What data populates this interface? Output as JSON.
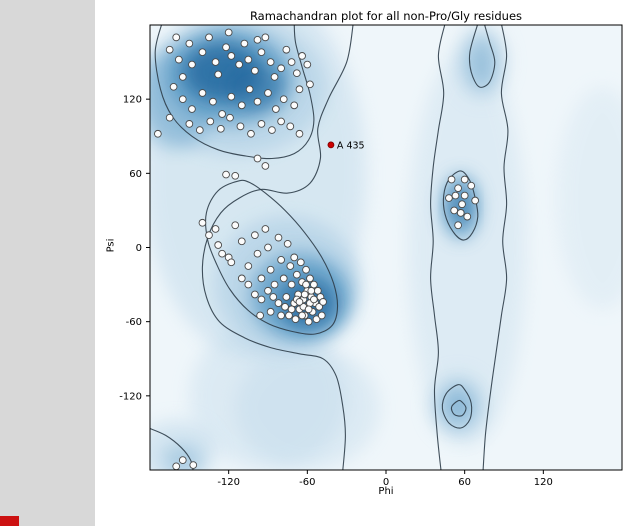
{
  "page": {
    "margin_color": "#d8d8d8",
    "figure_bg": "#ffffff",
    "artifact_color": "#cc1111"
  },
  "chart_data": {
    "type": "scatter",
    "title": "Ramachandran plot for all non-Pro/Gly residues",
    "xlabel": "Phi",
    "ylabel": "Psi",
    "xlim": [
      -180,
      180
    ],
    "ylim": [
      -180,
      180
    ],
    "xticks": [
      -120,
      -60,
      0,
      60,
      120
    ],
    "yticks": [
      -120,
      -60,
      0,
      60,
      120
    ],
    "grid": false,
    "legend": null,
    "colors": {
      "plot_bg": "#eff6fa",
      "light": "#b9d5e8",
      "mid": "#5f9dc7",
      "dark": "#1e639b",
      "contour": "#2e3d49",
      "point_fill": "#fcfcfc",
      "point_stroke": "#4a4a4a",
      "highlight": "#cc0000",
      "text": "#000000"
    },
    "points": [
      [
        -165,
        160
      ],
      [
        -158,
        152
      ],
      [
        -150,
        165
      ],
      [
        -148,
        148
      ],
      [
        -155,
        138
      ],
      [
        -162,
        130
      ],
      [
        -140,
        158
      ],
      [
        -135,
        170
      ],
      [
        -130,
        150
      ],
      [
        -128,
        140
      ],
      [
        -122,
        162
      ],
      [
        -118,
        155
      ],
      [
        -112,
        148
      ],
      [
        -108,
        165
      ],
      [
        -105,
        152
      ],
      [
        -100,
        143
      ],
      [
        -95,
        158
      ],
      [
        -92,
        170
      ],
      [
        -88,
        150
      ],
      [
        -85,
        138
      ],
      [
        -80,
        145
      ],
      [
        -76,
        160
      ],
      [
        -72,
        150
      ],
      [
        -68,
        141
      ],
      [
        -64,
        155
      ],
      [
        -155,
        120
      ],
      [
        -148,
        112
      ],
      [
        -140,
        125
      ],
      [
        -132,
        118
      ],
      [
        -125,
        108
      ],
      [
        -118,
        122
      ],
      [
        -110,
        115
      ],
      [
        -104,
        128
      ],
      [
        -98,
        118
      ],
      [
        -90,
        125
      ],
      [
        -84,
        112
      ],
      [
        -78,
        120
      ],
      [
        -70,
        115
      ],
      [
        -66,
        128
      ],
      [
        -150,
        100
      ],
      [
        -142,
        95
      ],
      [
        -134,
        102
      ],
      [
        -126,
        96
      ],
      [
        -119,
        105
      ],
      [
        -111,
        98
      ],
      [
        -103,
        92
      ],
      [
        -95,
        100
      ],
      [
        -87,
        95
      ],
      [
        -80,
        102
      ],
      [
        -73,
        98
      ],
      [
        -66,
        92
      ],
      [
        -160,
        170
      ],
      [
        -120,
        174
      ],
      [
        -98,
        168
      ],
      [
        -60,
        148
      ],
      [
        -58,
        132
      ],
      [
        -174,
        92
      ],
      [
        -165,
        105
      ],
      [
        -115,
        58
      ],
      [
        -98,
        72
      ],
      [
        -92,
        66
      ],
      [
        -122,
        59
      ],
      [
        -135,
        10
      ],
      [
        -128,
        2
      ],
      [
        -120,
        -8
      ],
      [
        -115,
        18
      ],
      [
        -110,
        5
      ],
      [
        -105,
        -15
      ],
      [
        -100,
        10
      ],
      [
        -98,
        -5
      ],
      [
        -95,
        -25
      ],
      [
        -92,
        15
      ],
      [
        -90,
        0
      ],
      [
        -88,
        -18
      ],
      [
        -85,
        -30
      ],
      [
        -82,
        8
      ],
      [
        -80,
        -10
      ],
      [
        -78,
        -25
      ],
      [
        -76,
        -40
      ],
      [
        -75,
        3
      ],
      [
        -73,
        -15
      ],
      [
        -72,
        -30
      ],
      [
        -70,
        -45
      ],
      [
        -70,
        -8
      ],
      [
        -68,
        -22
      ],
      [
        -67,
        -38
      ],
      [
        -66,
        -50
      ],
      [
        -65,
        -12
      ],
      [
        -64,
        -28
      ],
      [
        -63,
        -42
      ],
      [
        -62,
        -55
      ],
      [
        -61,
        -18
      ],
      [
        -60,
        -35
      ],
      [
        -60,
        -48
      ],
      [
        -59,
        -60
      ],
      [
        -58,
        -25
      ],
      [
        -57,
        -40
      ],
      [
        -56,
        -52
      ],
      [
        -55,
        -30
      ],
      [
        -54,
        -45
      ],
      [
        -53,
        -58
      ],
      [
        -52,
        -35
      ],
      [
        -51,
        -48
      ],
      [
        -50,
        -40
      ],
      [
        -49,
        -55
      ],
      [
        -48,
        -44
      ],
      [
        -58,
        -45
      ],
      [
        -63,
        -48
      ],
      [
        -68,
        -42
      ],
      [
        -72,
        -50
      ],
      [
        -77,
        -48
      ],
      [
        -82,
        -45
      ],
      [
        -86,
        -40
      ],
      [
        -90,
        -35
      ],
      [
        -95,
        -42
      ],
      [
        -100,
        -38
      ],
      [
        -105,
        -30
      ],
      [
        -110,
        -25
      ],
      [
        -118,
        -12
      ],
      [
        -125,
        -5
      ],
      [
        -130,
        15
      ],
      [
        -140,
        20
      ],
      [
        -62,
        -38
      ],
      [
        -66,
        -44
      ],
      [
        -59,
        -50
      ],
      [
        -55,
        -42
      ],
      [
        -57,
        -35
      ],
      [
        -61,
        -30
      ],
      [
        -64,
        -55
      ],
      [
        -69,
        -58
      ],
      [
        -74,
        -55
      ],
      [
        -80,
        -55
      ],
      [
        -88,
        -52
      ],
      [
        -96,
        -55
      ],
      [
        50,
        55
      ],
      [
        55,
        48
      ],
      [
        60,
        42
      ],
      [
        58,
        35
      ],
      [
        52,
        30
      ],
      [
        62,
        25
      ],
      [
        55,
        18
      ],
      [
        48,
        40
      ],
      [
        65,
        50
      ],
      [
        60,
        55
      ],
      [
        53,
        42
      ],
      [
        57,
        28
      ],
      [
        68,
        38
      ],
      [
        -155,
        -172
      ],
      [
        -147,
        -176
      ],
      [
        -160,
        -177
      ]
    ],
    "highlight": {
      "label": "A 435",
      "phi": -42,
      "psi": 83
    },
    "density_blobs": [
      [
        -100,
        60,
        85,
        150,
        "light",
        0.45
      ],
      [
        -90,
        -120,
        60,
        60,
        "light",
        0.35
      ],
      [
        -60,
        -130,
        55,
        50,
        "light",
        0.35
      ],
      [
        -115,
        130,
        70,
        55,
        "light",
        0.9
      ],
      [
        -160,
        120,
        30,
        40,
        "mid",
        0.45
      ],
      [
        -120,
        138,
        48,
        38,
        "mid",
        0.8
      ],
      [
        -125,
        142,
        30,
        24,
        "dark",
        0.75
      ],
      [
        -100,
        130,
        22,
        18,
        "dark",
        0.5
      ],
      [
        -75,
        -30,
        55,
        55,
        "light",
        0.9
      ],
      [
        -65,
        -40,
        38,
        35,
        "mid",
        0.8
      ],
      [
        -60,
        -45,
        22,
        20,
        "dark",
        0.75
      ],
      [
        62,
        0,
        45,
        160,
        "light",
        0.32
      ],
      [
        57,
        33,
        14,
        26,
        "mid",
        0.8
      ],
      [
        57,
        33,
        8,
        14,
        "dark",
        0.55
      ],
      [
        73,
        150,
        20,
        30,
        "light",
        0.5
      ],
      [
        73,
        150,
        12,
        22,
        "mid",
        0.45
      ],
      [
        55,
        -128,
        22,
        26,
        "light",
        0.6
      ],
      [
        55,
        -128,
        13,
        16,
        "mid",
        0.55
      ],
      [
        165,
        40,
        35,
        90,
        "light",
        0.22
      ],
      [
        -160,
        -165,
        30,
        25,
        "light",
        0.5
      ],
      [
        -155,
        -172,
        15,
        12,
        "mid",
        0.35
      ]
    ],
    "contours": [
      {
        "closed": false,
        "pts": [
          [
            -25,
            181
          ],
          [
            -30,
            150
          ],
          [
            -44,
            120
          ],
          [
            -52,
            96
          ],
          [
            -50,
            72
          ],
          [
            -58,
            52
          ],
          [
            -75,
            44
          ],
          [
            -95,
            47
          ],
          [
            -112,
            40
          ],
          [
            -126,
            28
          ],
          [
            -136,
            8
          ],
          [
            -140,
            -16
          ],
          [
            -137,
            -40
          ],
          [
            -127,
            -60
          ],
          [
            -108,
            -73
          ],
          [
            -88,
            -81
          ],
          [
            -66,
            -86
          ],
          [
            -48,
            -90
          ],
          [
            -38,
            -104
          ],
          [
            -33,
            -128
          ],
          [
            -31,
            -152
          ],
          [
            -33,
            -181
          ]
        ]
      },
      {
        "closed": false,
        "pts": [
          [
            -171,
            181
          ],
          [
            -176,
            158
          ],
          [
            -172,
            128
          ],
          [
            -163,
            106
          ],
          [
            -148,
            90
          ],
          [
            -128,
            79
          ],
          [
            -107,
            74
          ],
          [
            -87,
            72
          ],
          [
            -70,
            76
          ],
          [
            -59,
            87
          ],
          [
            -55,
            103
          ],
          [
            -58,
            124
          ],
          [
            -64,
            146
          ],
          [
            -69,
            166
          ],
          [
            -70,
            181
          ]
        ]
      },
      {
        "closed": true,
        "pts": [
          [
            -112,
            54
          ],
          [
            -128,
            46
          ],
          [
            -137,
            28
          ],
          [
            -136,
            6
          ],
          [
            -129,
            -14
          ],
          [
            -119,
            -34
          ],
          [
            -105,
            -51
          ],
          [
            -89,
            -62
          ],
          [
            -71,
            -68
          ],
          [
            -54,
            -70
          ],
          [
            -41,
            -63
          ],
          [
            -37,
            -48
          ],
          [
            -40,
            -29
          ],
          [
            -49,
            -8
          ],
          [
            -62,
            12
          ],
          [
            -77,
            30
          ],
          [
            -92,
            44
          ],
          [
            -103,
            52
          ]
        ]
      },
      {
        "closed": false,
        "pts": [
          [
            45,
            181
          ],
          [
            40,
            155
          ],
          [
            44,
            125
          ],
          [
            40,
            95
          ],
          [
            36,
            65
          ],
          [
            34,
            35
          ],
          [
            36,
            5
          ],
          [
            34,
            -25
          ],
          [
            37,
            -55
          ],
          [
            40,
            -85
          ],
          [
            37,
            -115
          ],
          [
            39,
            -150
          ],
          [
            42,
            -181
          ]
        ]
      },
      {
        "closed": false,
        "pts": [
          [
            88,
            181
          ],
          [
            92,
            155
          ],
          [
            88,
            125
          ],
          [
            93,
            95
          ],
          [
            90,
            65
          ],
          [
            92,
            35
          ],
          [
            89,
            5
          ],
          [
            92,
            -25
          ],
          [
            88,
            -55
          ],
          [
            84,
            -85
          ],
          [
            80,
            -115
          ],
          [
            76,
            -150
          ],
          [
            74,
            -181
          ]
        ]
      },
      {
        "closed": false,
        "pts": [
          [
            70,
            181
          ],
          [
            64,
            158
          ],
          [
            65,
            142
          ],
          [
            71,
            130
          ],
          [
            79,
            134
          ],
          [
            83,
            150
          ],
          [
            79,
            166
          ],
          [
            75,
            181
          ]
        ]
      },
      {
        "closed": true,
        "pts": [
          [
            57,
            62
          ],
          [
            48,
            55
          ],
          [
            44,
            42
          ],
          [
            45,
            27
          ],
          [
            51,
            13
          ],
          [
            59,
            6
          ],
          [
            66,
            12
          ],
          [
            70,
            25
          ],
          [
            68,
            40
          ],
          [
            64,
            54
          ]
        ]
      },
      {
        "closed": true,
        "pts": [
          [
            55,
            -111
          ],
          [
            46,
            -118
          ],
          [
            43,
            -130
          ],
          [
            48,
            -142
          ],
          [
            57,
            -146
          ],
          [
            64,
            -139
          ],
          [
            65,
            -126
          ],
          [
            60,
            -115
          ]
        ]
      },
      {
        "closed": true,
        "pts": [
          [
            55,
            -124
          ],
          [
            50,
            -129
          ],
          [
            52,
            -135
          ],
          [
            58,
            -136
          ],
          [
            61,
            -130
          ],
          [
            58,
            -125
          ]
        ]
      },
      {
        "closed": false,
        "pts": [
          [
            -181,
            -146
          ],
          [
            -168,
            -152
          ],
          [
            -156,
            -162
          ],
          [
            -149,
            -172
          ],
          [
            -147,
            -181
          ]
        ]
      }
    ]
  }
}
